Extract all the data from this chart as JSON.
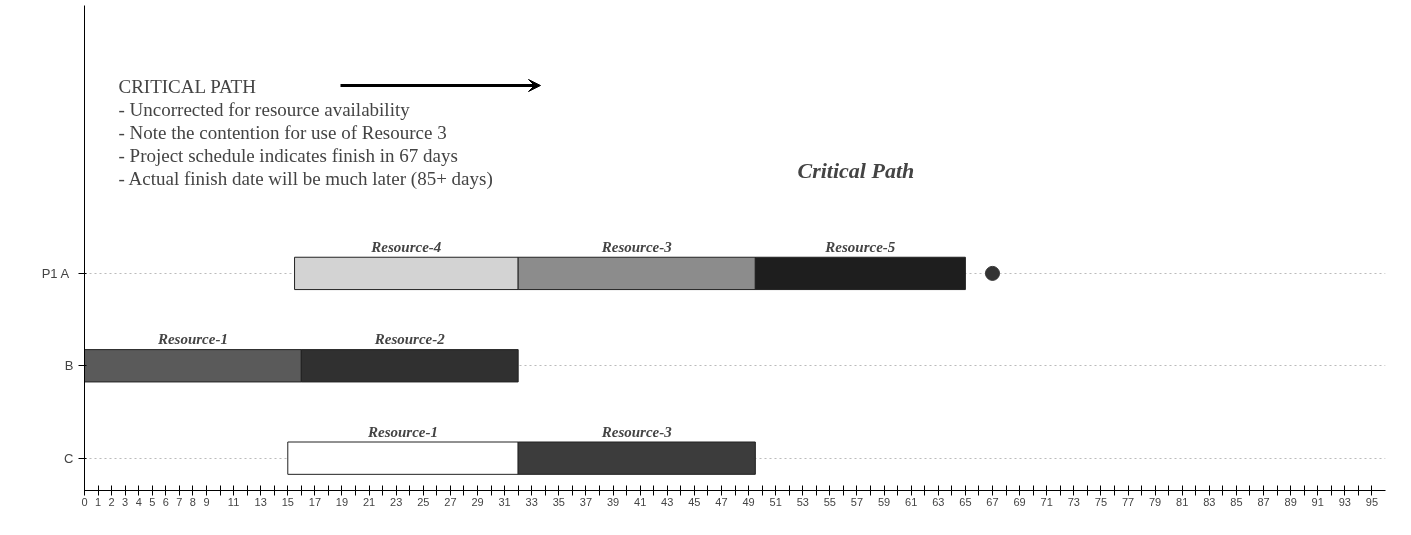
{
  "chart_data": {
    "type": "bar",
    "orientation": "horizontal",
    "categories": [
      "P1  A",
      "B",
      "C"
    ],
    "series": [
      {
        "name": "Resource-4",
        "color": "#d3d3d3",
        "base": [
          15.5,
          null,
          null
        ],
        "values": [
          16.5,
          null,
          null
        ]
      },
      {
        "name": "Resource-3",
        "color": "#8c8c8c",
        "base": [
          32,
          null,
          null
        ],
        "values": [
          17.5,
          null,
          null
        ]
      },
      {
        "name": "Resource-5",
        "color": "#1e1e1e",
        "base": [
          49.5,
          null,
          null
        ],
        "values": [
          15.5,
          null,
          null
        ]
      },
      {
        "name": "Resource-1",
        "color": "#5a5a5a",
        "base": [
          null,
          0,
          null
        ],
        "values": [
          null,
          16,
          null
        ]
      },
      {
        "name": "Resource-2",
        "color": "#303030",
        "base": [
          null,
          16,
          null
        ],
        "values": [
          null,
          16,
          null
        ]
      },
      {
        "name": "Resource-1",
        "color": "#ffffff",
        "base": [
          null,
          null,
          15
        ],
        "values": [
          null,
          null,
          17
        ]
      },
      {
        "name": "Resource-3",
        "color": "#3c3c3c",
        "base": [
          null,
          null,
          32
        ],
        "values": [
          null,
          null,
          17.5
        ]
      },
      {
        "type": "scatter",
        "color": "#333333",
        "values": [
          67,
          null,
          null
        ]
      }
    ],
    "marker": "circle",
    "xlim": [
      0,
      96
    ],
    "xticks": [
      0,
      1,
      2,
      3,
      4,
      5,
      6,
      7,
      8,
      9,
      {
        "value": 10,
        "label": null
      },
      11,
      {
        "value": 12,
        "label": null
      },
      13,
      {
        "value": 14,
        "label": null
      },
      15,
      {
        "value": 16,
        "label": null
      },
      17,
      {
        "value": 18,
        "label": null
      },
      19,
      {
        "value": 20,
        "label": null
      },
      21,
      {
        "value": 22,
        "label": null
      },
      23,
      {
        "value": 24,
        "label": null
      },
      25,
      {
        "value": 26,
        "label": null
      },
      27,
      {
        "value": 28,
        "label": null
      },
      29,
      {
        "value": 30,
        "label": null
      },
      31,
      {
        "value": 32,
        "label": null
      },
      33,
      {
        "value": 34,
        "label": null
      },
      35,
      {
        "value": 36,
        "label": null
      },
      37,
      {
        "value": 38,
        "label": null
      },
      39,
      {
        "value": 40,
        "label": null
      },
      41,
      {
        "value": 42,
        "label": null
      },
      43,
      {
        "value": 44,
        "label": null
      },
      45,
      {
        "value": 46,
        "label": null
      },
      47,
      {
        "value": 48,
        "label": null
      },
      49,
      {
        "value": 50,
        "label": null
      },
      51,
      {
        "value": 52,
        "label": null
      },
      53,
      {
        "value": 54,
        "label": null
      },
      55,
      {
        "value": 56,
        "label": null
      },
      57,
      {
        "value": 58,
        "label": null
      },
      59,
      {
        "value": 60,
        "label": null
      },
      61,
      {
        "value": 62,
        "label": null
      },
      63,
      {
        "value": 64,
        "label": null
      },
      65,
      {
        "value": 66,
        "label": null
      },
      67,
      {
        "value": 68,
        "label": null
      },
      69,
      {
        "value": 70,
        "label": null
      },
      71,
      {
        "value": 72,
        "label": null
      },
      73,
      {
        "value": 74,
        "label": null
      },
      75,
      {
        "value": 76,
        "label": null
      },
      77,
      {
        "value": 78,
        "label": null
      },
      79,
      {
        "value": 80,
        "label": null
      },
      81,
      {
        "value": 82,
        "label": null
      },
      83,
      {
        "value": 84,
        "label": null
      },
      85,
      {
        "value": 86,
        "label": null
      },
      87,
      {
        "value": 88,
        "label": null
      },
      89,
      {
        "value": 90,
        "label": null
      },
      91,
      {
        "value": 92,
        "label": null
      },
      93,
      {
        "value": 94,
        "label": null
      },
      95
    ],
    "grid": "y",
    "annotations": [
      "CRITICAL PATH",
      "- Uncorrected for resource availability",
      "- Note the contention for use of Resource 3",
      "- Project schedule indicates finish in 67 days",
      "- Actual finish date will be much later (85+ days)",
      "Critical Path"
    ]
  }
}
